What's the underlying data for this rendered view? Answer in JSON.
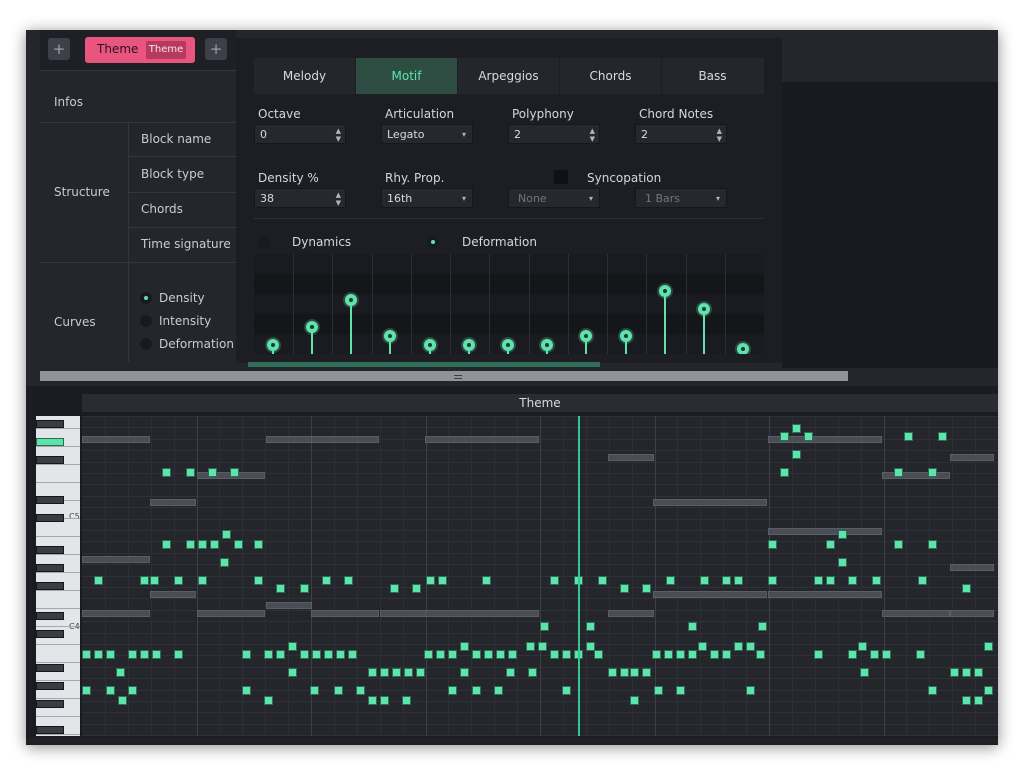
{
  "header": {
    "add_left": "+",
    "theme_tab": "Theme",
    "theme_badge": "Theme",
    "add_right": "+"
  },
  "sidebar": {
    "infos": "Infos",
    "structure": "Structure",
    "structure_items": [
      "Block name",
      "Block type",
      "Chords",
      "Time signature"
    ],
    "curves": "Curves",
    "curve_items": [
      "Density",
      "Intensity",
      "Deformation"
    ]
  },
  "panel": {
    "tabs": [
      "Melody",
      "Motif",
      "Arpeggios",
      "Chords",
      "Bass"
    ],
    "octave": {
      "label": "Octave",
      "value": "0"
    },
    "articulation": {
      "label": "Articulation",
      "value": "Legato"
    },
    "polyphony": {
      "label": "Polyphony",
      "value": "2"
    },
    "chord_notes": {
      "label": "Chord Notes",
      "value": "2"
    },
    "density": {
      "label": "Density %",
      "value": "38"
    },
    "rhy_prop": {
      "label": "Rhy. Prop.",
      "value": "16th"
    },
    "syncopation": {
      "label": "Syncopation",
      "type": "None",
      "bars": "1 Bars"
    },
    "dynamics": "Dynamics",
    "deformation": "Deformation",
    "curve_levels": [
      0.1,
      0.3,
      0.6,
      0.2,
      0.1,
      0.1,
      0.1,
      0.1,
      0.2,
      0.2,
      0.7,
      0.5,
      0.05
    ]
  },
  "roll": {
    "title": "Theme",
    "c5_label": "C5",
    "c4_label": "C4"
  },
  "colors": {
    "accent": "#5fe3ac",
    "theme_pink": "#e8567e",
    "panel_bg": "#1c1e23"
  }
}
